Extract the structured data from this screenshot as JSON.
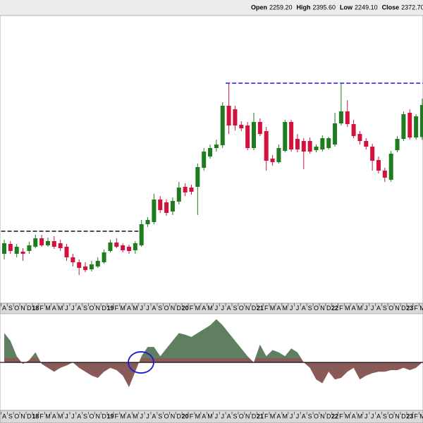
{
  "chart_data": {
    "type": "candlestick",
    "header": {
      "labels": [
        "Open",
        "High",
        "Low",
        "Close"
      ],
      "values": [
        2259.2,
        2395.6,
        2249.1,
        2372.7
      ],
      "value_labels": [
        "2259.20",
        "2395.60",
        "2249.10",
        "2372.70"
      ]
    },
    "categories": [
      "A",
      "S",
      "O",
      "N",
      "D",
      "18",
      "F",
      "M",
      "A",
      "M",
      "J",
      "J",
      "A",
      "S",
      "O",
      "N",
      "D",
      "19",
      "F",
      "M",
      "A",
      "M",
      "J",
      "J",
      "A",
      "S",
      "O",
      "N",
      "D",
      "20",
      "F",
      "M",
      "A",
      "M",
      "J",
      "J",
      "A",
      "S",
      "O",
      "N",
      "D",
      "21",
      "F",
      "M",
      "A",
      "M",
      "J",
      "J",
      "A",
      "S",
      "O",
      "N",
      "D",
      "22",
      "F",
      "M",
      "A",
      "M",
      "J",
      "J",
      "A",
      "S",
      "O",
      "N",
      "D",
      "23",
      "F",
      "M"
    ],
    "up_color": "#1e7b1e",
    "down_color": "#d2123c",
    "ylim": [
      1670,
      2690
    ],
    "open": [
      1845,
      1880,
      1845,
      1852.5,
      1855,
      1870,
      1900,
      1875,
      1890,
      1882.5,
      1870,
      1832.5,
      1815,
      1800,
      1790,
      1800,
      1815,
      1855,
      1885,
      1875,
      1870,
      1857.5,
      1875,
      1950,
      1957.5,
      2037.5,
      2027.5,
      1995,
      2030,
      2082.5,
      2080,
      2082.5,
      2150,
      2190,
      2220,
      2230,
      2370,
      2357.5,
      2302.5,
      2300,
      2220,
      2312.5,
      2280,
      2182.5,
      2170,
      2210,
      2312.5,
      2252.5,
      2245,
      2245,
      2212.5,
      2215,
      2220,
      2232.5,
      2307.5,
      2350,
      2305,
      2270,
      2245,
      2225,
      2177.5,
      2140,
      2107.5,
      2212.5,
      2252.5,
      2345,
      2257.5,
      2259.2
    ],
    "high": [
      1895,
      1890,
      1880,
      1865,
      1887.5,
      1912.5,
      1912.5,
      1902.5,
      1907.5,
      1895,
      1880,
      1845,
      1825,
      1815,
      1820,
      1832.5,
      1860,
      1895,
      1900,
      1882.5,
      1877.5,
      1890,
      1965,
      1975,
      2057.5,
      2050,
      2037.5,
      2045,
      2100,
      2095,
      2090,
      2165,
      2220,
      2232.5,
      2250,
      2382.5,
      2450,
      2370,
      2315,
      2312.5,
      2345,
      2325,
      2295,
      2195,
      2232.5,
      2320,
      2320,
      2270,
      2255,
      2257.5,
      2232.5,
      2265,
      2260,
      2345,
      2450,
      2390,
      2320,
      2280,
      2255,
      2235,
      2190,
      2150,
      2210,
      2262.5,
      2350,
      2357.5,
      2340,
      2395.6
    ],
    "low": [
      1825,
      1845,
      1832.5,
      1820,
      1845,
      1865,
      1870,
      1870,
      1862.5,
      1855,
      1820,
      1800,
      1770,
      1780,
      1782.5,
      1795,
      1810,
      1850,
      1865,
      1850,
      1845,
      1845,
      1870,
      1940,
      1950,
      1990,
      1980,
      1982.5,
      2020,
      2050,
      2055,
      1982.5,
      2140,
      2182.5,
      2207.5,
      2220,
      2270,
      2282.5,
      2280,
      2212.5,
      2212.5,
      2262.5,
      2140,
      2157.5,
      2165,
      2205,
      2207.5,
      2205,
      2145,
      2200,
      2205,
      2207.5,
      2215,
      2225,
      2300,
      2295,
      2255,
      2232.5,
      2215,
      2140,
      2130,
      2100,
      2100,
      2205,
      2245,
      2250,
      2250,
      2249.1
    ],
    "close": [
      1882.5,
      1855,
      1870,
      1845,
      1875,
      1900,
      1875,
      1890,
      1870,
      1865,
      1832.5,
      1815,
      1795,
      1787.5,
      1807.5,
      1820,
      1850,
      1885,
      1870,
      1857.5,
      1855,
      1882.5,
      1950,
      1965,
      2037.5,
      2000,
      1990,
      2032.5,
      2080,
      2062.5,
      2065,
      2152.5,
      2207.5,
      2220,
      2232.5,
      2370,
      2300,
      2300,
      2290,
      2220,
      2312.5,
      2270,
      2175,
      2170,
      2220,
      2312.5,
      2215,
      2215,
      2207.5,
      2207.5,
      2225,
      2255,
      2255,
      2307.5,
      2350,
      2305,
      2262.5,
      2245,
      2225,
      2175,
      2140,
      2115,
      2200,
      2252.5,
      2340,
      2257.5,
      2332.5,
      2372.7
    ],
    "levels": [
      {
        "value": 1925,
        "color": "#111111",
        "x": [
          0,
          21
        ]
      },
      {
        "value": 2450,
        "color": "#1a1ae6",
        "x": [
          36,
          67
        ]
      }
    ],
    "oscillator": {
      "type": "area",
      "y2lim": [
        -62,
        63
      ],
      "pos_color": "#607e60",
      "neg_color": "#8a5a58",
      "values": [
        38,
        28,
        8,
        -2,
        3,
        13,
        -2,
        -7,
        -12,
        -7,
        -4,
        0,
        -7,
        -12,
        -17,
        -20,
        -12,
        -7,
        -10,
        -17,
        -32,
        -12,
        8,
        20,
        20,
        8,
        18,
        28,
        38,
        36,
        33,
        38,
        43,
        48,
        56,
        48,
        38,
        28,
        18,
        8,
        0,
        23,
        8,
        16,
        13,
        8,
        18,
        13,
        0,
        -7,
        -22,
        -27,
        -12,
        -22,
        -20,
        -12,
        -7,
        -22,
        -17,
        -14,
        -12,
        -12,
        -10,
        -10,
        -7,
        -10,
        -7,
        0
      ]
    }
  }
}
